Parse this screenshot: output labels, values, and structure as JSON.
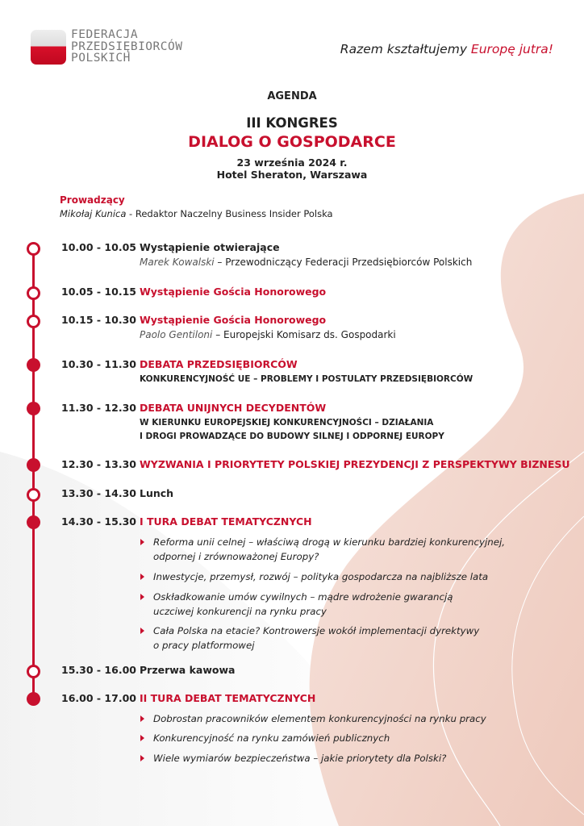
{
  "header": {
    "logo_lines": [
      "FEDERACJA",
      "PRZEDSIĘBIORCÓW",
      "POLSKICH"
    ],
    "slogan_start": "Razem kształtujemy ",
    "slogan_accent": "Europę jutra!"
  },
  "heading": {
    "agenda": "AGENDA",
    "congress": "III KONGRES",
    "name": "DIALOG O GOSPODARCE",
    "date": "23 września 2024 r.",
    "venue": "Hotel Sheraton, Warszawa"
  },
  "host": {
    "label": "Prowadzący",
    "name": "Mikołaj Kunica",
    "role": " - Redaktor Naczelny Business Insider Polska"
  },
  "colors": {
    "accent": "#c8102e",
    "text": "#222222"
  },
  "agenda": [
    {
      "time": "10.00 - 10.05",
      "title": "Wystąpienie otwierające",
      "style": "dark",
      "marker": "hollow",
      "speaker": "Marek Kowalski",
      "speaker_role": " – Przewodniczący Federacji Przedsiębiorców Polskich"
    },
    {
      "time": "10.05 - 10.15",
      "title": "Wystąpienie Gościa Honorowego",
      "style": "red",
      "marker": "hollow"
    },
    {
      "time": "10.15 - 10.30",
      "title": "Wystąpienie Gościa Honorowego",
      "style": "red",
      "marker": "hollow",
      "speaker": "Paolo Gentiloni",
      "speaker_role": " – Europejski Komisarz ds. Gospodarki"
    },
    {
      "time": "10.30 - 11.30",
      "title": "DEBATA PRZEDSIĘBIORCÓW",
      "style": "red",
      "marker": "filled",
      "caps": [
        "KONKURENCYJNOŚĆ UE – PROBLEMY I POSTULATY PRZEDSIĘBIORCÓW"
      ]
    },
    {
      "time": "11.30 - 12.30",
      "title": "DEBATA UNIJNYCH DECYDENTÓW",
      "style": "red",
      "marker": "filled",
      "caps": [
        "W KIERUNKU EUROPEJSKIEJ KONKURENCYJNOŚCI – DZIAŁANIA",
        "I DROGI PROWADZĄCE DO BUDOWY SILNEJ I ODPORNEJ EUROPY"
      ]
    },
    {
      "time": "12.30 - 13.30",
      "title": "WYZWANIA I PRIORYTETY POLSKIEJ PREZYDENCJI Z PERSPEKTYWY BIZNESU",
      "style": "red",
      "marker": "filled"
    },
    {
      "time": "13.30 - 14.30",
      "title": "Lunch",
      "style": "dark",
      "marker": "hollow"
    },
    {
      "time": "14.30 - 15.30",
      "title": "I TURA DEBAT TEMATYCZNYCH",
      "style": "red",
      "marker": "filled",
      "bullets": [
        [
          "Reforma unii celnej – właściwą drogą w kierunku bardziej konkurencyjnej,",
          "odpornej i zrównoważonej Europy?"
        ],
        [
          "Inwestycje, przemysł, rozwój – polityka gospodarcza na najbliższe lata"
        ],
        [
          "Oskładkowanie umów cywilnych – mądre wdrożenie gwarancją",
          "uczciwej konkurencji na rynku pracy"
        ],
        [
          "Cała Polska na etacie? Kontrowersje wokół implementacji dyrektywy",
          "o pracy platformowej"
        ]
      ]
    },
    {
      "time": "15.30 - 16.00",
      "title": "Przerwa kawowa",
      "style": "dark",
      "marker": "hollow"
    },
    {
      "time": "16.00 - 17.00",
      "title": "II TURA DEBAT TEMATYCZNYCH",
      "style": "red",
      "marker": "filled",
      "bullets": [
        [
          "Dobrostan pracowników elementem konkurencyjności na rynku pracy"
        ],
        [
          "Konkurencyjność na rynku zamówień publicznych"
        ],
        [
          "Wiele wymiarów bezpieczeństwa – jakie priorytety dla Polski?"
        ]
      ]
    }
  ]
}
